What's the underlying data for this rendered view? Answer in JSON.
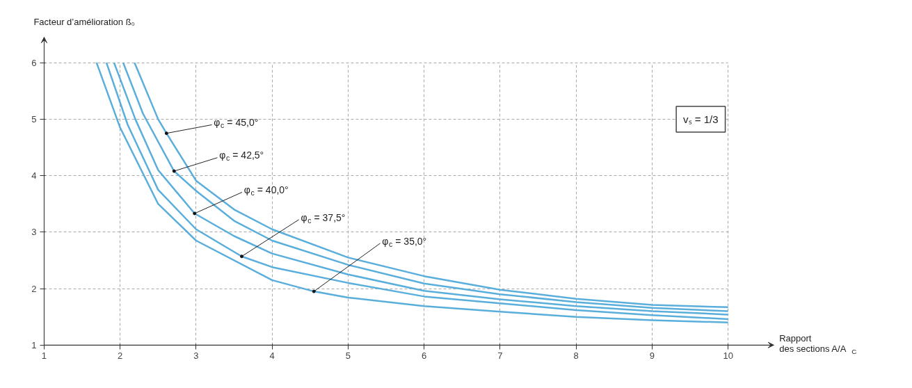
{
  "chart_data": {
    "type": "line",
    "xlabel": "Rapport\ndes sections A/A$_{C}$",
    "ylabel": "Facteur d’amélioration ß₀",
    "xlim": [
      1,
      10.6
    ],
    "ylim": [
      1,
      6.45
    ],
    "xticks": [
      1,
      2,
      3,
      4,
      5,
      6,
      7,
      8,
      9,
      10
    ],
    "yticks": [
      1,
      2,
      3,
      4,
      5,
      6
    ],
    "grid": true,
    "line_style": "solid",
    "marker": "none",
    "series": [
      {
        "color": "#5aaedc",
        "x": [
          2.19,
          2.5,
          2.61,
          3,
          3.5,
          4,
          5,
          6,
          7,
          8,
          9,
          10
        ],
        "values": [
          6,
          5.0,
          4.75,
          3.91,
          3.4,
          3.05,
          2.55,
          2.22,
          1.98,
          1.82,
          1.71,
          1.67
        ]
      },
      {
        "color": "#5aaedc",
        "x": [
          2.04,
          2.3,
          2.71,
          3,
          3.5,
          4,
          5,
          6,
          7,
          8,
          9,
          10
        ],
        "values": [
          6,
          5.1,
          4.08,
          3.73,
          3.2,
          2.85,
          2.42,
          2.09,
          1.9,
          1.76,
          1.66,
          1.6
        ]
      },
      {
        "color": "#5aaedc",
        "x": [
          1.92,
          2.2,
          2.5,
          2.98,
          3.5,
          4,
          5,
          6,
          7,
          8,
          9,
          10
        ],
        "values": [
          6,
          5.0,
          4.1,
          3.33,
          2.93,
          2.62,
          2.25,
          1.96,
          1.81,
          1.69,
          1.6,
          1.54
        ]
      },
      {
        "color": "#5aaedc",
        "x": [
          1.82,
          2.1,
          2.5,
          3,
          3.6,
          4,
          5,
          6,
          7,
          8,
          9,
          10
        ],
        "values": [
          6,
          4.9,
          3.75,
          3.05,
          2.57,
          2.38,
          2.1,
          1.86,
          1.74,
          1.62,
          1.53,
          1.46
        ]
      },
      {
        "color": "#5aaedc",
        "x": [
          1.69,
          2,
          2.5,
          3,
          4,
          4.55,
          5,
          6,
          7,
          8,
          9,
          10
        ],
        "values": [
          6,
          4.85,
          3.5,
          2.85,
          2.15,
          1.95,
          1.84,
          1.69,
          1.59,
          1.5,
          1.44,
          1.4
        ]
      }
    ],
    "annotations": [
      {
        "text": "φ$_{c}$ = 45,0°",
        "x": 2.61,
        "y": 4.75
      },
      {
        "text": "φ$_{c}$ = 42,5°",
        "x": 2.71,
        "y": 4.08
      },
      {
        "text": "φ$_{c}$ = 40,0°",
        "x": 2.98,
        "y": 3.33
      },
      {
        "text": "φ$_{c}$ = 37,5°",
        "x": 3.6,
        "y": 2.57
      },
      {
        "text": "φ$_{c}$ = 35,0°",
        "x": 4.55,
        "y": 1.95
      },
      "vₛ = 1/3"
    ]
  }
}
